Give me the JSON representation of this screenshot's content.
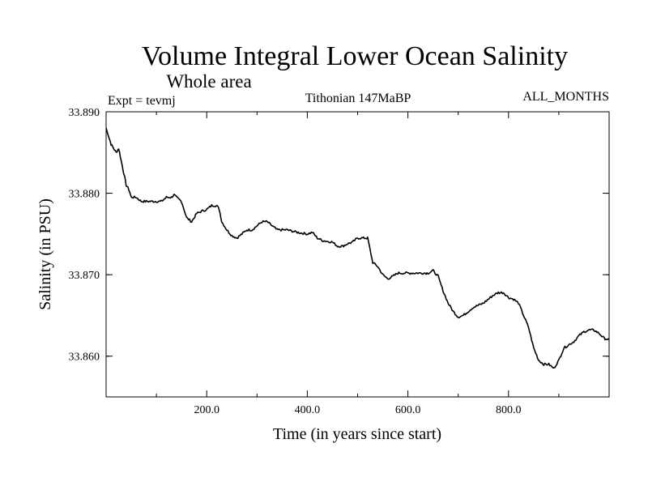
{
  "chart_data": {
    "type": "line",
    "title": "Volume Integral Lower Ocean Salinity",
    "subtitle": "Whole area",
    "experiment": "Expt = tevmj",
    "period": "Tithonian 147MaBP",
    "months": "ALL_MONTHS",
    "xlabel": "Time (in years since start)",
    "ylabel": "Salinity (in PSU)",
    "xlim": [
      0,
      1000
    ],
    "ylim": [
      33.855,
      33.89
    ],
    "x_ticks": [
      {
        "value": 200,
        "label": "200.0"
      },
      {
        "value": 400,
        "label": "400.0"
      },
      {
        "value": 600,
        "label": "600.0"
      },
      {
        "value": 800,
        "label": "800.0"
      }
    ],
    "y_ticks": [
      {
        "value": 33.89,
        "label": "33.890"
      },
      {
        "value": 33.88,
        "label": "33.880"
      },
      {
        "value": 33.87,
        "label": "33.870"
      },
      {
        "value": 33.86,
        "label": "33.860"
      }
    ],
    "series": [
      {
        "name": "Volume integral lower ocean salinity",
        "x": [
          0,
          5,
          10,
          15,
          20,
          25,
          30,
          35,
          40,
          45,
          50,
          60,
          70,
          80,
          90,
          100,
          110,
          120,
          130,
          135,
          140,
          150,
          160,
          170,
          180,
          190,
          200,
          210,
          220,
          225,
          230,
          240,
          250,
          260,
          270,
          280,
          290,
          300,
          310,
          320,
          340,
          360,
          380,
          400,
          410,
          420,
          430,
          450,
          460,
          470,
          480,
          490,
          500,
          510,
          515,
          520,
          525,
          530,
          540,
          550,
          560,
          570,
          580,
          590,
          600,
          620,
          640,
          650,
          660,
          670,
          680,
          690,
          700,
          710,
          730,
          750,
          760,
          770,
          780,
          790,
          800,
          810,
          820,
          830,
          840,
          850,
          860,
          870,
          880,
          890,
          900,
          910,
          930,
          940,
          950,
          960,
          970,
          980,
          990,
          1000
        ],
        "y": [
          33.888,
          33.887,
          33.886,
          33.8855,
          33.885,
          33.8855,
          33.884,
          33.8825,
          33.881,
          33.8805,
          33.8795,
          33.8795,
          33.879,
          33.879,
          33.879,
          33.879,
          33.879,
          33.8795,
          33.8795,
          33.8798,
          33.8795,
          33.879,
          33.877,
          33.8765,
          33.8775,
          33.8778,
          33.878,
          33.8785,
          33.8785,
          33.878,
          33.8765,
          33.8755,
          33.8748,
          33.8745,
          33.875,
          33.8755,
          33.8755,
          33.876,
          33.8765,
          33.8765,
          33.8755,
          33.8755,
          33.8752,
          33.875,
          33.8752,
          33.8745,
          33.8742,
          33.874,
          33.8735,
          33.8735,
          33.8738,
          33.874,
          33.8745,
          33.8745,
          33.8745,
          33.8745,
          33.873,
          33.8715,
          33.871,
          33.87,
          33.8695,
          33.8698,
          33.8702,
          33.8702,
          33.8702,
          33.8702,
          33.8702,
          33.8705,
          33.8698,
          33.868,
          33.8665,
          33.8655,
          33.8648,
          33.865,
          33.866,
          33.8665,
          33.867,
          33.8675,
          33.8678,
          33.8678,
          33.8672,
          33.867,
          33.8665,
          33.865,
          33.8635,
          33.861,
          33.8595,
          33.859,
          33.859,
          33.8585,
          33.8595,
          33.861,
          33.8618,
          33.8625,
          33.863,
          33.8632,
          33.8632,
          33.8628,
          33.8622,
          33.862
        ]
      }
    ]
  }
}
